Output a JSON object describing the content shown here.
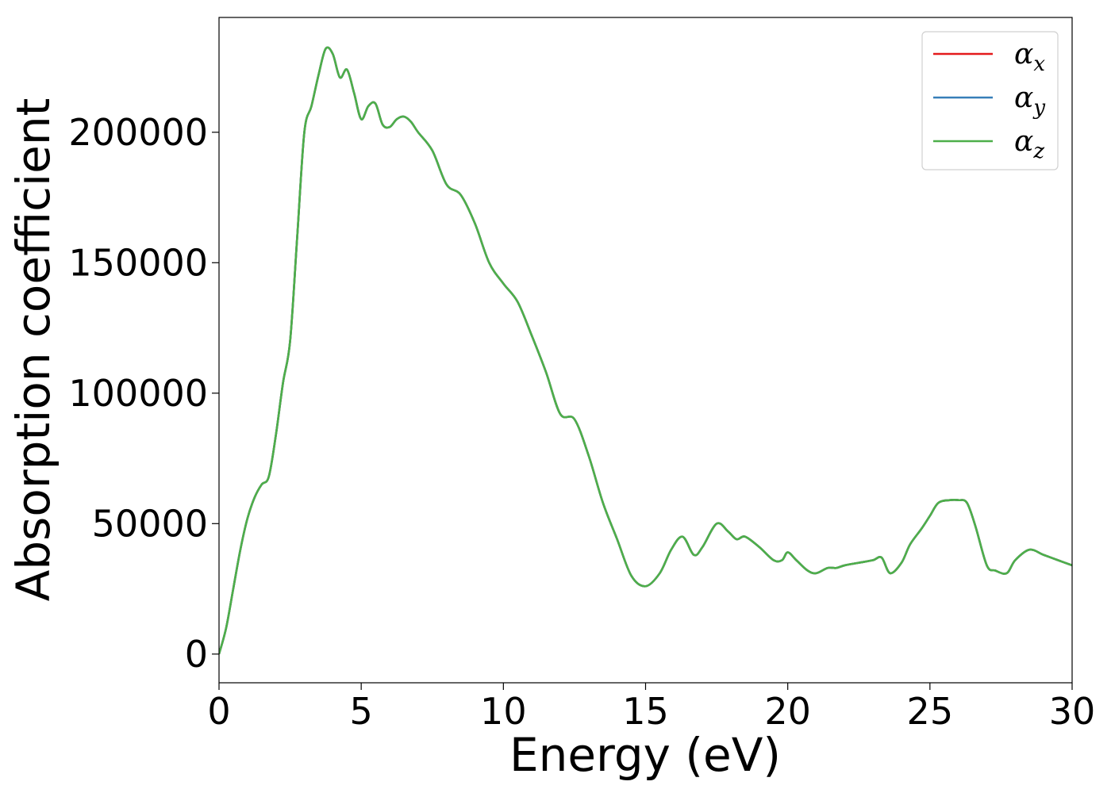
{
  "chart_data": {
    "type": "line",
    "xlabel": "Energy (eV)",
    "ylabel": "Absorption coefficient",
    "xlim": [
      0,
      30
    ],
    "ylim": [
      -11000,
      244000
    ],
    "xticks": [
      0,
      5,
      10,
      15,
      20,
      25,
      30
    ],
    "yticks": [
      0,
      50000,
      100000,
      150000,
      200000
    ],
    "grid": false,
    "legend_position": "top-right",
    "x": [
      0,
      0.25,
      0.5,
      0.75,
      1.0,
      1.25,
      1.5,
      1.75,
      2.0,
      2.25,
      2.5,
      2.75,
      3.0,
      3.25,
      3.5,
      3.75,
      4.0,
      4.25,
      4.5,
      4.75,
      5.0,
      5.25,
      5.5,
      5.75,
      6.0,
      6.25,
      6.5,
      6.75,
      7.0,
      7.5,
      8.0,
      8.5,
      9.0,
      9.5,
      10.0,
      10.5,
      11.0,
      11.5,
      12.0,
      12.5,
      13.0,
      13.5,
      14.0,
      14.5,
      15.0,
      15.5,
      15.9,
      16.3,
      16.7,
      17.0,
      17.5,
      17.9,
      18.2,
      18.5,
      19.0,
      19.5,
      19.8,
      20.0,
      20.3,
      20.7,
      21.0,
      21.4,
      21.7,
      22.0,
      22.5,
      23.0,
      23.3,
      23.6,
      24.0,
      24.3,
      24.7,
      25.0,
      25.3,
      25.7,
      26.0,
      26.3,
      26.6,
      27.0,
      27.3,
      27.7,
      28.0,
      28.5,
      29.0,
      29.5,
      30.0
    ],
    "series": [
      {
        "name": "α_x",
        "color": "#e41a1c",
        "values": [
          0,
          10000,
          25000,
          40000,
          52000,
          60000,
          65000,
          68000,
          84000,
          104000,
          120000,
          160000,
          200000,
          210000,
          222000,
          232000,
          230000,
          221000,
          224000,
          215000,
          205000,
          210000,
          211000,
          203000,
          202000,
          205000,
          206000,
          204000,
          200000,
          193000,
          180000,
          176000,
          165000,
          150000,
          142000,
          135000,
          122000,
          108000,
          92000,
          90000,
          76000,
          58000,
          44000,
          30000,
          26000,
          31000,
          40000,
          45000,
          38000,
          41000,
          50000,
          47000,
          44000,
          45000,
          41000,
          36000,
          36000,
          39000,
          36000,
          32000,
          31000,
          33000,
          33000,
          34000,
          35000,
          36000,
          37000,
          31000,
          35000,
          42000,
          48000,
          53000,
          58000,
          59000,
          59000,
          58000,
          49000,
          34000,
          32000,
          31000,
          36000,
          40000,
          38000,
          36000,
          34000
        ]
      },
      {
        "name": "α_y",
        "color": "#377eb8",
        "values": [
          0,
          10000,
          25000,
          40000,
          52000,
          60000,
          65000,
          68000,
          84000,
          104000,
          120000,
          160000,
          200000,
          210000,
          222000,
          232000,
          230000,
          221000,
          224000,
          215000,
          205000,
          210000,
          211000,
          203000,
          202000,
          205000,
          206000,
          204000,
          200000,
          193000,
          180000,
          176000,
          165000,
          150000,
          142000,
          135000,
          122000,
          108000,
          92000,
          90000,
          76000,
          58000,
          44000,
          30000,
          26000,
          31000,
          40000,
          45000,
          38000,
          41000,
          50000,
          47000,
          44000,
          45000,
          41000,
          36000,
          36000,
          39000,
          36000,
          32000,
          31000,
          33000,
          33000,
          34000,
          35000,
          36000,
          37000,
          31000,
          35000,
          42000,
          48000,
          53000,
          58000,
          59000,
          59000,
          58000,
          49000,
          34000,
          32000,
          31000,
          36000,
          40000,
          38000,
          36000,
          34000
        ]
      },
      {
        "name": "α_z",
        "color": "#4daf4a",
        "values": [
          0,
          10000,
          25000,
          40000,
          52000,
          60000,
          65000,
          68000,
          84000,
          104000,
          120000,
          160000,
          200000,
          210000,
          222000,
          232000,
          230000,
          221000,
          224000,
          215000,
          205000,
          210000,
          211000,
          203000,
          202000,
          205000,
          206000,
          204000,
          200000,
          193000,
          180000,
          176000,
          165000,
          150000,
          142000,
          135000,
          122000,
          108000,
          92000,
          90000,
          76000,
          58000,
          44000,
          30000,
          26000,
          31000,
          40000,
          45000,
          38000,
          41000,
          50000,
          47000,
          44000,
          45000,
          41000,
          36000,
          36000,
          39000,
          36000,
          32000,
          31000,
          33000,
          33000,
          34000,
          35000,
          36000,
          37000,
          31000,
          35000,
          42000,
          48000,
          53000,
          58000,
          59000,
          59000,
          58000,
          49000,
          34000,
          32000,
          31000,
          36000,
          40000,
          38000,
          36000,
          34000
        ]
      }
    ],
    "legend": [
      {
        "symbol": "α",
        "subscript": "x",
        "color": "#e41a1c"
      },
      {
        "symbol": "α",
        "subscript": "y",
        "color": "#377eb8"
      },
      {
        "symbol": "α",
        "subscript": "z",
        "color": "#4daf4a"
      }
    ]
  }
}
